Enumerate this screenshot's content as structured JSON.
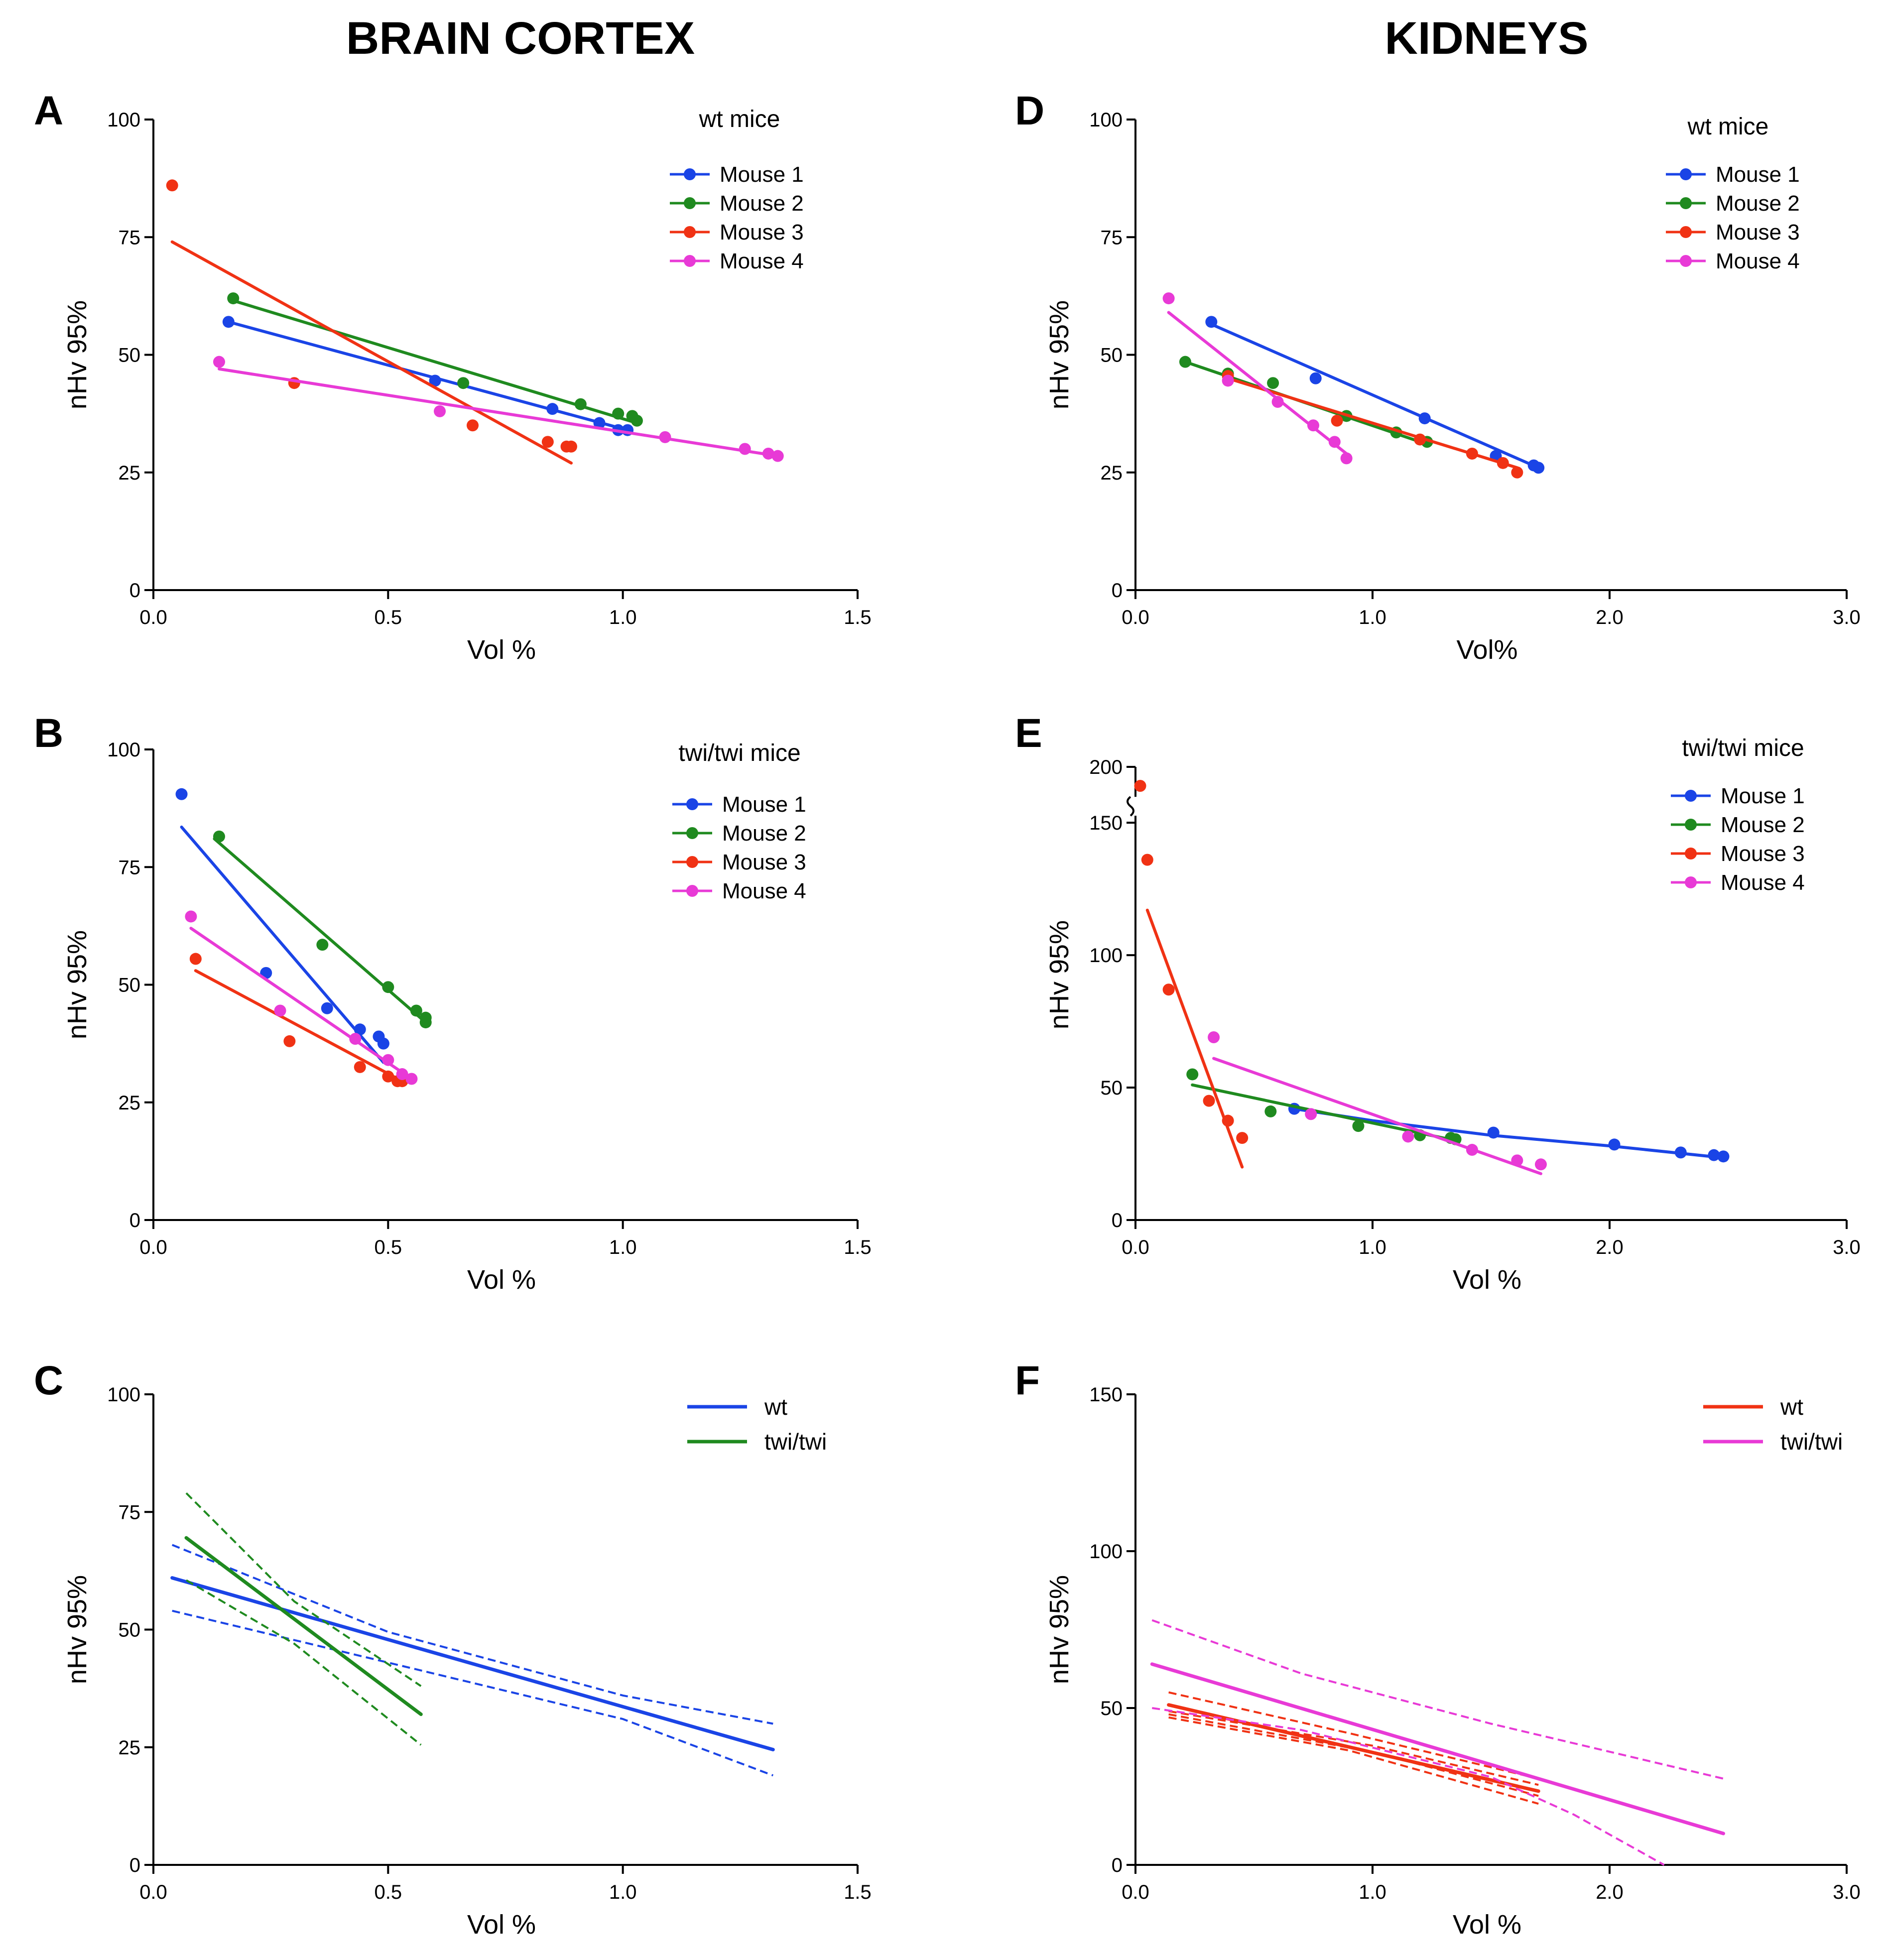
{
  "headers": {
    "left": "BRAIN CORTEX",
    "right": "KIDNEYS"
  },
  "colors": {
    "blue": "#1a44e6",
    "green": "#1f8a1f",
    "red": "#f03214",
    "magenta": "#e83ad6",
    "axis": "#000000"
  },
  "chart_data": [
    {
      "id": "A",
      "panel_label": "A",
      "type": "scatter",
      "legend_title": "wt mice",
      "xlabel": "Vol %",
      "ylabel": "nHv 95%",
      "xlim": [
        0,
        1.5
      ],
      "ylim": [
        0,
        100
      ],
      "xticks": [
        "0.0",
        "0.5",
        "1.0",
        "1.5"
      ],
      "yticks": [
        "0",
        "25",
        "50",
        "75",
        "100"
      ],
      "series": [
        {
          "name": "Mouse 1",
          "color": "blue",
          "points": [
            [
              0.16,
              57
            ],
            [
              0.6,
              44.5
            ],
            [
              0.85,
              38.5
            ],
            [
              0.95,
              35.5
            ],
            [
              0.99,
              34
            ],
            [
              1.01,
              34
            ]
          ],
          "fit": [
            [
              0.16,
              57
            ],
            [
              1.01,
              34
            ]
          ]
        },
        {
          "name": "Mouse 2",
          "color": "green",
          "points": [
            [
              0.17,
              62
            ],
            [
              0.66,
              44
            ],
            [
              0.91,
              39.5
            ],
            [
              0.99,
              37.5
            ],
            [
              1.02,
              37
            ],
            [
              1.03,
              36
            ]
          ],
          "fit": [
            [
              0.17,
              61.5
            ],
            [
              1.03,
              35.5
            ]
          ]
        },
        {
          "name": "Mouse 3",
          "color": "red",
          "points": [
            [
              0.04,
              86
            ],
            [
              0.3,
              44
            ],
            [
              0.68,
              35
            ],
            [
              0.84,
              31.5
            ],
            [
              0.88,
              30.5
            ],
            [
              0.89,
              30.5
            ]
          ],
          "fit": [
            [
              0.04,
              74
            ],
            [
              0.89,
              27
            ]
          ]
        },
        {
          "name": "Mouse 4",
          "color": "magenta",
          "points": [
            [
              0.14,
              48.5
            ],
            [
              0.61,
              38
            ],
            [
              1.09,
              32.5
            ],
            [
              1.26,
              30
            ],
            [
              1.31,
              29
            ],
            [
              1.33,
              28.5
            ]
          ],
          "fit": [
            [
              0.14,
              47
            ],
            [
              1.33,
              28.5
            ]
          ]
        }
      ]
    },
    {
      "id": "B",
      "panel_label": "B",
      "type": "scatter",
      "legend_title": "twi/twi mice",
      "xlabel": "Vol %",
      "ylabel": "nHv 95%",
      "xlim": [
        0,
        1.5
      ],
      "ylim": [
        0,
        100
      ],
      "xticks": [
        "0.0",
        "0.5",
        "1.0",
        "1.5"
      ],
      "yticks": [
        "0",
        "25",
        "50",
        "75",
        "100"
      ],
      "series": [
        {
          "name": "Mouse 1",
          "color": "blue",
          "points": [
            [
              0.06,
              90.5
            ],
            [
              0.24,
              52.5
            ],
            [
              0.37,
              45
            ],
            [
              0.44,
              40.5
            ],
            [
              0.48,
              39
            ],
            [
              0.49,
              37.5
            ]
          ],
          "fit": [
            [
              0.06,
              83.5
            ],
            [
              0.49,
              33.5
            ]
          ]
        },
        {
          "name": "Mouse 2",
          "color": "green",
          "points": [
            [
              0.14,
              81.5
            ],
            [
              0.36,
              58.5
            ],
            [
              0.5,
              49.5
            ],
            [
              0.56,
              44.5
            ],
            [
              0.58,
              43
            ],
            [
              0.58,
              42
            ]
          ],
          "fit": [
            [
              0.13,
              81
            ],
            [
              0.58,
              42
            ]
          ]
        },
        {
          "name": "Mouse 3",
          "color": "red",
          "points": [
            [
              0.09,
              55.5
            ],
            [
              0.29,
              38
            ],
            [
              0.44,
              32.5
            ],
            [
              0.5,
              30.5
            ],
            [
              0.52,
              29.5
            ],
            [
              0.53,
              29.5
            ]
          ],
          "fit": [
            [
              0.09,
              53
            ],
            [
              0.53,
              29.5
            ]
          ]
        },
        {
          "name": "Mouse 4",
          "color": "magenta",
          "points": [
            [
              0.08,
              64.5
            ],
            [
              0.27,
              44.5
            ],
            [
              0.43,
              38.5
            ],
            [
              0.5,
              34
            ],
            [
              0.53,
              31
            ],
            [
              0.55,
              30
            ]
          ],
          "fit": [
            [
              0.08,
              62
            ],
            [
              0.55,
              30
            ]
          ]
        }
      ]
    },
    {
      "id": "C",
      "panel_label": "C",
      "type": "line",
      "xlabel": "Vol %",
      "ylabel": "nHv 95%",
      "xlim": [
        0,
        1.5
      ],
      "ylim": [
        0,
        100
      ],
      "xticks": [
        "0.0",
        "0.5",
        "1.0",
        "1.5"
      ],
      "yticks": [
        "0",
        "25",
        "50",
        "75",
        "100"
      ],
      "series": [
        {
          "name": "wt",
          "color": "blue",
          "fit": [
            [
              0.04,
              61
            ],
            [
              1.32,
              24.5
            ]
          ],
          "ci_upper": [
            [
              0.04,
              68
            ],
            [
              0.5,
              49.5
            ],
            [
              1.0,
              36
            ],
            [
              1.32,
              30
            ]
          ],
          "ci_lower": [
            [
              0.04,
              54
            ],
            [
              0.5,
              43
            ],
            [
              1.0,
              31
            ],
            [
              1.32,
              19
            ]
          ]
        },
        {
          "name": "twi/twi",
          "color": "green",
          "fit": [
            [
              0.07,
              69.5
            ],
            [
              0.57,
              32
            ]
          ],
          "ci_upper": [
            [
              0.07,
              79
            ],
            [
              0.3,
              56
            ],
            [
              0.57,
              38
            ]
          ],
          "ci_lower": [
            [
              0.07,
              60.5
            ],
            [
              0.3,
              47
            ],
            [
              0.57,
              25.5
            ]
          ]
        }
      ]
    },
    {
      "id": "D",
      "panel_label": "D",
      "type": "scatter",
      "legend_title": "wt mice",
      "xlabel": "Vol%",
      "ylabel": "nHv 95%",
      "xlim": [
        0,
        3
      ],
      "ylim": [
        0,
        100
      ],
      "xticks": [
        "0.0",
        "1.0",
        "2.0",
        "3.0"
      ],
      "yticks": [
        "0",
        "25",
        "50",
        "75",
        "100"
      ],
      "series": [
        {
          "name": "Mouse 1",
          "color": "blue",
          "points": [
            [
              0.32,
              57
            ],
            [
              0.76,
              45
            ],
            [
              1.22,
              36.5
            ],
            [
              1.52,
              28.5
            ],
            [
              1.68,
              26.5
            ],
            [
              1.7,
              26
            ]
          ],
          "fit": [
            [
              0.32,
              56.5
            ],
            [
              1.7,
              26
            ]
          ]
        },
        {
          "name": "Mouse 2",
          "color": "green",
          "points": [
            [
              0.21,
              48.5
            ],
            [
              0.39,
              46
            ],
            [
              0.58,
              44
            ],
            [
              0.89,
              37
            ],
            [
              1.1,
              33.5
            ],
            [
              1.23,
              31.5
            ]
          ],
          "fit": [
            [
              0.21,
              48.5
            ],
            [
              1.23,
              31
            ]
          ]
        },
        {
          "name": "Mouse 3",
          "color": "red",
          "points": [
            [
              0.39,
              45.5
            ],
            [
              0.85,
              36
            ],
            [
              1.2,
              32
            ],
            [
              1.42,
              29
            ],
            [
              1.55,
              27
            ],
            [
              1.61,
              25
            ]
          ],
          "fit": [
            [
              0.39,
              45
            ],
            [
              1.61,
              26
            ]
          ]
        },
        {
          "name": "Mouse 4",
          "color": "magenta",
          "points": [
            [
              0.14,
              62
            ],
            [
              0.39,
              44.5
            ],
            [
              0.6,
              40
            ],
            [
              0.75,
              35
            ],
            [
              0.84,
              31.5
            ],
            [
              0.89,
              28
            ]
          ],
          "fit": [
            [
              0.14,
              59
            ],
            [
              0.89,
              29
            ]
          ]
        }
      ]
    },
    {
      "id": "E",
      "panel_label": "E",
      "type": "scatter",
      "legend_title": "twi/twi mice",
      "xlabel": "Vol %",
      "ylabel": "nHv 95%",
      "xlim": [
        0,
        3
      ],
      "ylim": [
        0,
        200
      ],
      "axis_break": [
        155,
        195
      ],
      "xticks": [
        "0.0",
        "1.0",
        "2.0",
        "3.0"
      ],
      "yticks": [
        "0",
        "50",
        "100",
        "150",
        "200"
      ],
      "series": [
        {
          "name": "Mouse 1",
          "color": "blue",
          "points": [
            [
              0.67,
              42
            ],
            [
              1.51,
              33
            ],
            [
              2.02,
              28.5
            ],
            [
              2.3,
              25.5
            ],
            [
              2.44,
              24.5
            ],
            [
              2.48,
              24
            ]
          ],
          "fit": [
            [
              0.67,
              42
            ],
            [
              1.0,
              37.5
            ],
            [
              1.5,
              32
            ],
            [
              2.0,
              28
            ],
            [
              2.48,
              23.5
            ]
          ]
        },
        {
          "name": "Mouse 2",
          "color": "green",
          "points": [
            [
              0.24,
              55
            ],
            [
              0.57,
              41
            ],
            [
              0.94,
              35.5
            ],
            [
              1.2,
              32
            ],
            [
              1.33,
              31
            ],
            [
              1.35,
              30.5
            ]
          ],
          "fit": [
            [
              0.24,
              51
            ],
            [
              1.35,
              30
            ]
          ]
        },
        {
          "name": "Mouse 3",
          "color": "red",
          "points": [
            [
              0.02,
              183
            ],
            [
              0.05,
              136
            ],
            [
              0.14,
              87
            ],
            [
              0.31,
              45
            ],
            [
              0.39,
              37.5
            ],
            [
              0.45,
              31
            ]
          ],
          "fit": [
            [
              0.05,
              117
            ],
            [
              0.45,
              20
            ]
          ]
        },
        {
          "name": "Mouse 4",
          "color": "magenta",
          "points": [
            [
              0.33,
              69
            ],
            [
              0.74,
              40
            ],
            [
              1.15,
              31.5
            ],
            [
              1.42,
              26.5
            ],
            [
              1.61,
              22.5
            ],
            [
              1.71,
              21
            ]
          ],
          "fit": [
            [
              0.33,
              61
            ],
            [
              1.71,
              17.5
            ]
          ]
        }
      ]
    },
    {
      "id": "F",
      "panel_label": "F",
      "type": "line",
      "xlabel": "Vol %",
      "ylabel": "nHv 95%",
      "xlim": [
        0,
        3
      ],
      "ylim": [
        0,
        150
      ],
      "xticks": [
        "0.0",
        "1.0",
        "2.0",
        "3.0"
      ],
      "yticks": [
        "0",
        "50",
        "100",
        "150"
      ],
      "series": [
        {
          "name": "wt",
          "color": "red",
          "fit": [
            [
              0.14,
              51
            ],
            [
              1.7,
              23.5
            ]
          ],
          "ci_upper": [
            [
              0.14,
              55
            ],
            [
              0.9,
              42
            ],
            [
              1.7,
              27.5
            ]
          ],
          "ci_lower": [
            [
              0.14,
              47
            ],
            [
              0.9,
              36.5
            ],
            [
              1.7,
              19.5
            ]
          ],
          "ci2_upper": [
            [
              0.14,
              49
            ],
            [
              1.0,
              38
            ],
            [
              1.7,
              25.5
            ]
          ],
          "ci2_lower": [
            [
              0.14,
              48
            ],
            [
              1.0,
              36
            ],
            [
              1.7,
              22
            ]
          ]
        },
        {
          "name": "twi/twi",
          "color": "magenta",
          "fit": [
            [
              0.07,
              64
            ],
            [
              2.48,
              10
            ]
          ],
          "ci_upper": [
            [
              0.07,
              78
            ],
            [
              0.7,
              61
            ],
            [
              1.5,
              45
            ],
            [
              2.48,
              27.5
            ]
          ],
          "ci_lower": [
            [
              0.07,
              50
            ],
            [
              0.7,
              43
            ],
            [
              1.5,
              28
            ],
            [
              1.85,
              16
            ],
            [
              2.23,
              0
            ]
          ]
        }
      ]
    }
  ]
}
